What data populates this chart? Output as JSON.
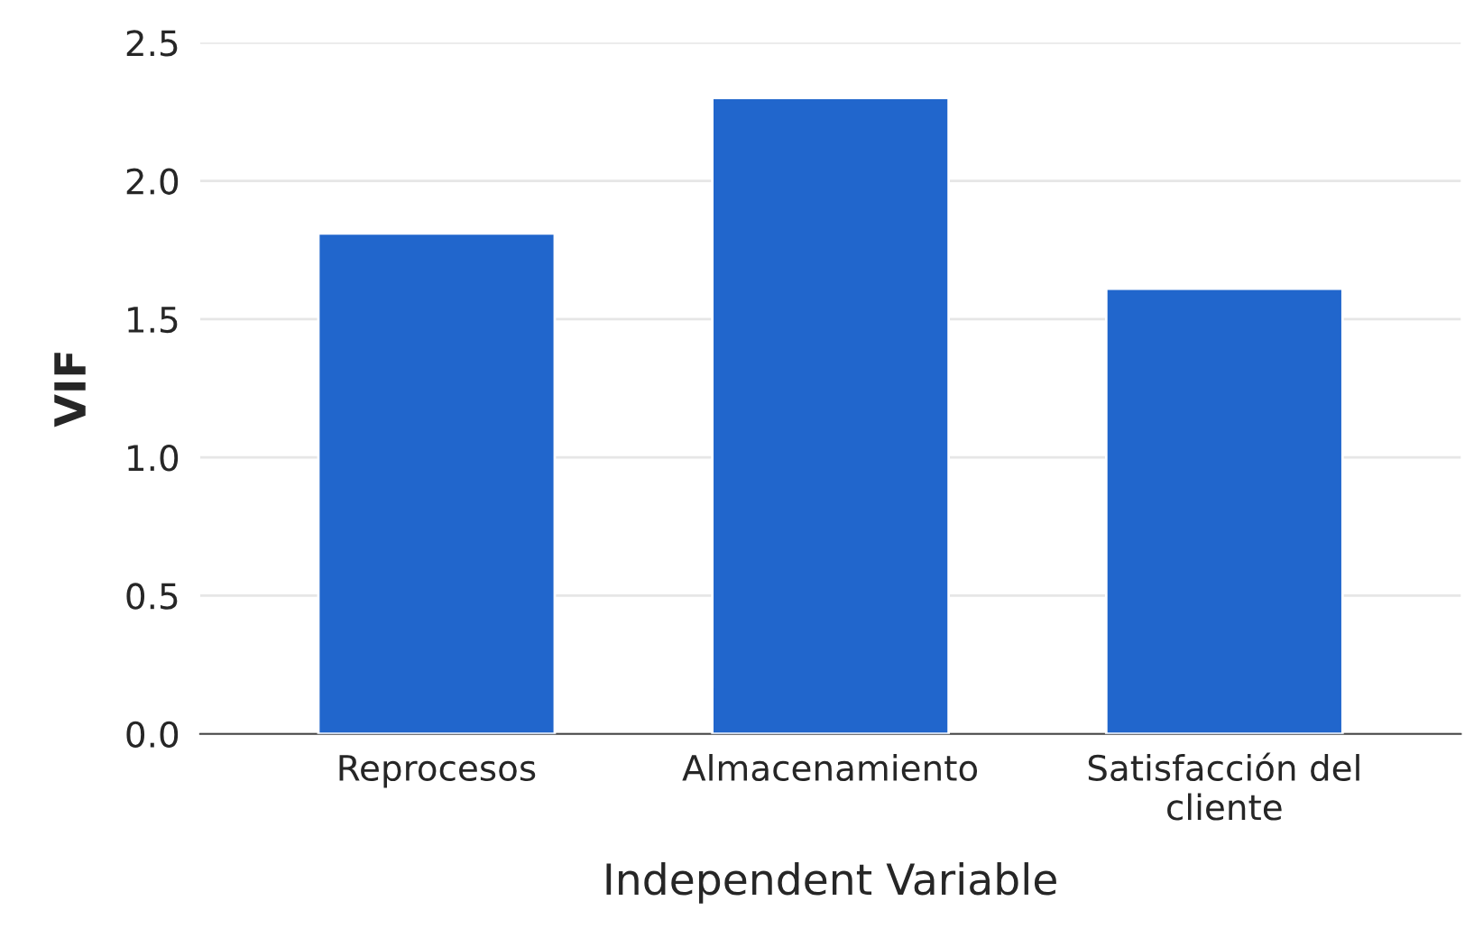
{
  "chart_data": {
    "type": "bar",
    "categories": [
      "Reprocesos",
      "Almacenamiento",
      "Satisfacción del\ncliente"
    ],
    "values": [
      1.81,
      2.3,
      1.61
    ],
    "color": "#2166cc",
    "xlabel": "Independent Variable",
    "ylabel": "VIF",
    "ylim": [
      0,
      2.5
    ],
    "yticks": [
      {
        "value": 0,
        "label": "0.0"
      },
      0.5,
      {
        "value": 1,
        "label": "1.0"
      },
      1.5,
      {
        "value": 2,
        "label": "2.0"
      },
      2.5
    ],
    "grid": "y"
  }
}
